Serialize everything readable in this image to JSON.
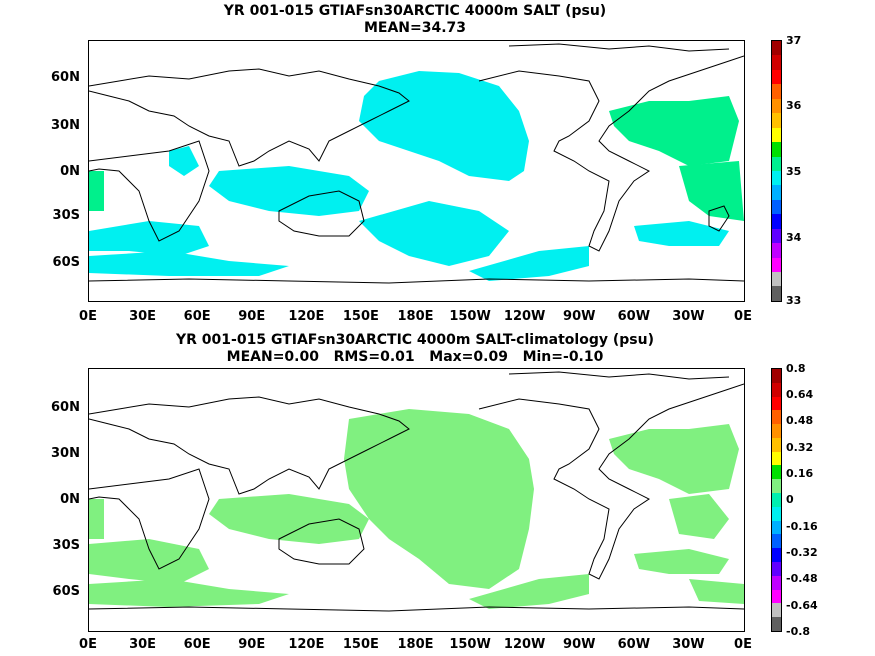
{
  "panels": [
    {
      "title": "YR 001-015 GTIAFsn30ARCTIC 4000m SALT (psu)",
      "stats": "MEAN=34.73",
      "fill_color": "#00f0f0",
      "colorbar": {
        "labels": [
          "37",
          "36",
          "35",
          "34",
          "33"
        ],
        "colors": [
          "#a00000",
          "#d00000",
          "#ff0000",
          "#ff6000",
          "#ff9000",
          "#ffc000",
          "#ffff00",
          "#00e000",
          "#00f090",
          "#00f0f0",
          "#00b0ff",
          "#0060ff",
          "#0000ff",
          "#6000ff",
          "#c000ff",
          "#ff00ff",
          "#c0c0c0",
          "#606060"
        ]
      }
    },
    {
      "title": "YR 001-015 GTIAFsn30ARCTIC 4000m SALT-climatology (psu)",
      "stats": "MEAN=0.00   RMS=0.01   Max=0.09   Min=-0.10",
      "fill_color": "#80f080",
      "colorbar": {
        "labels": [
          "0.8",
          "0.64",
          "0.48",
          "0.32",
          "0.16",
          "0",
          "-0.16",
          "-0.32",
          "-0.48",
          "-0.64",
          "-0.8"
        ],
        "colors": [
          "#a00000",
          "#d00000",
          "#ff0000",
          "#ff6000",
          "#ff9000",
          "#ffc000",
          "#ffff00",
          "#00e000",
          "#80f080",
          "#00f0b0",
          "#00f0f0",
          "#00b0ff",
          "#0060ff",
          "#0000ff",
          "#6000ff",
          "#c000ff",
          "#ff00ff",
          "#c0c0c0",
          "#606060"
        ]
      }
    }
  ],
  "y_axis_labels": [
    "60N",
    "30N",
    "0N",
    "30S",
    "60S"
  ],
  "x_axis_labels": [
    "0E",
    "30E",
    "60E",
    "90E",
    "120E",
    "150E",
    "180E",
    "150W",
    "120W",
    "90W",
    "60W",
    "30W",
    "0E"
  ]
}
